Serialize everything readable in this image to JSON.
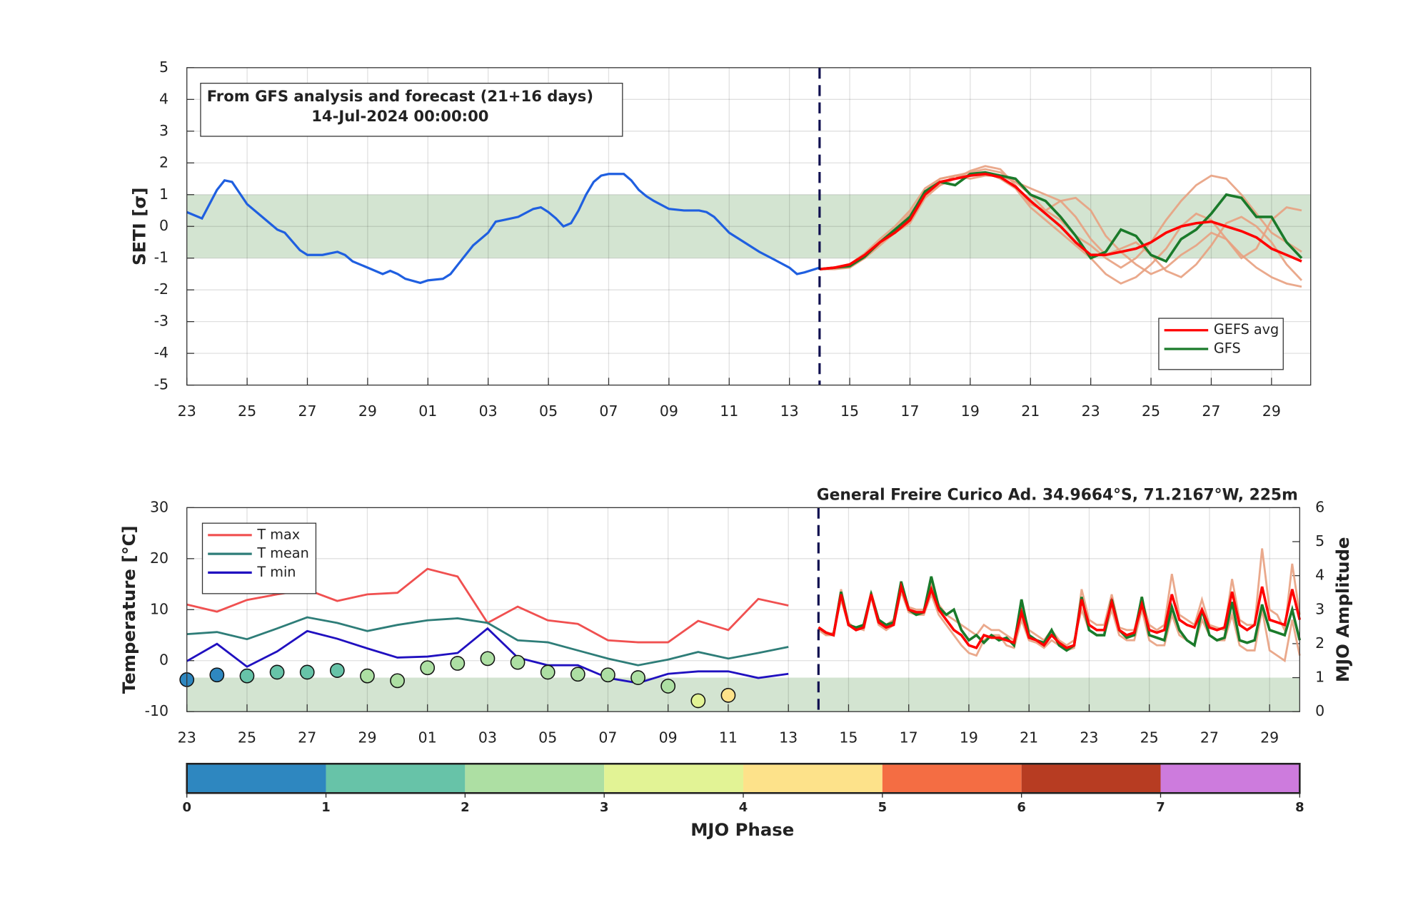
{
  "chart_data": [
    {
      "type": "line",
      "ylabel": "SETI [σ]",
      "annotation": [
        "From GFS analysis and forecast (21+16 days)",
        "14-Jul-2024 00:00:00"
      ],
      "xlim": [
        0,
        37.3
      ],
      "ylim": [
        -5,
        5
      ],
      "xticks": [
        {
          "value": 0,
          "label": "23"
        },
        {
          "value": 2,
          "label": "25"
        },
        {
          "value": 4,
          "label": "27"
        },
        {
          "value": 6,
          "label": "29"
        },
        {
          "value": 8,
          "label": "01"
        },
        {
          "value": 10,
          "label": "03"
        },
        {
          "value": 12,
          "label": "05"
        },
        {
          "value": 14,
          "label": "07"
        },
        {
          "value": 16,
          "label": "09"
        },
        {
          "value": 18,
          "label": "11"
        },
        {
          "value": 20,
          "label": "13"
        },
        {
          "value": 22,
          "label": "15"
        },
        {
          "value": 24,
          "label": "17"
        },
        {
          "value": 26,
          "label": "19"
        },
        {
          "value": 28,
          "label": "21"
        },
        {
          "value": 30,
          "label": "23"
        },
        {
          "value": 32,
          "label": "25"
        },
        {
          "value": 34,
          "label": "27"
        },
        {
          "value": 36,
          "label": "29"
        }
      ],
      "yticks": [
        -5,
        -4,
        -3,
        -2,
        -1,
        0,
        1,
        2,
        3,
        4,
        5
      ],
      "grid": true,
      "band": {
        "range": [
          -1,
          1
        ],
        "color": "#d3e4d1"
      },
      "vline": 21,
      "legend": "lower right",
      "observed": {
        "color": "#1f5fe0",
        "x": [
          0,
          0.5,
          1,
          1.25,
          1.5,
          2,
          2.5,
          3,
          3.25,
          3.75,
          4,
          4.5,
          5,
          5.25,
          5.5,
          6,
          6.5,
          6.75,
          7,
          7.25,
          7.75,
          8,
          8.5,
          8.75,
          9,
          9.5,
          10,
          10.25,
          10.5,
          11,
          11.5,
          11.75,
          12,
          12.25,
          12.5,
          12.75,
          13,
          13.25,
          13.5,
          13.75,
          14,
          14.25,
          14.5,
          14.75,
          15,
          15.25,
          15.5,
          16,
          16.5,
          17,
          17.25,
          17.5,
          18,
          18.5,
          19,
          19.5,
          20,
          20.25,
          20.5,
          21
        ],
        "values": [
          0.45,
          0.25,
          1.15,
          1.45,
          1.4,
          0.7,
          0.3,
          -0.1,
          -0.2,
          -0.75,
          -0.9,
          -0.9,
          -0.8,
          -0.9,
          -1.1,
          -1.3,
          -1.5,
          -1.4,
          -1.5,
          -1.65,
          -1.78,
          -1.7,
          -1.65,
          -1.5,
          -1.2,
          -0.6,
          -0.2,
          0.15,
          0.2,
          0.3,
          0.55,
          0.6,
          0.45,
          0.25,
          0.0,
          0.1,
          0.5,
          1.0,
          1.4,
          1.6,
          1.65,
          1.65,
          1.65,
          1.45,
          1.15,
          0.95,
          0.8,
          0.55,
          0.5,
          0.5,
          0.45,
          0.3,
          -0.2,
          -0.5,
          -0.8,
          -1.05,
          -1.3,
          -1.5,
          -1.45,
          -1.3
        ]
      },
      "forecast": {
        "x": [
          21,
          21.5,
          22,
          22.5,
          23,
          23.5,
          24,
          24.5,
          25,
          25.5,
          26,
          26.5,
          27,
          27.5,
          28,
          28.5,
          29,
          29.5,
          30,
          30.5,
          31,
          31.5,
          32,
          32.5,
          33,
          33.5,
          34,
          34.5,
          35,
          35.5,
          36,
          36.5,
          37
        ],
        "member_color": "#e8a080",
        "members": [
          [
            -1.35,
            -1.3,
            -1.2,
            -0.85,
            -0.4,
            0,
            0.5,
            1.2,
            1.5,
            1.6,
            1.7,
            1.8,
            1.7,
            1.4,
            1.0,
            0.5,
            0.2,
            -0.3,
            -0.6,
            -1.0,
            -1.3,
            -1.0,
            -0.5,
            0.2,
            0.8,
            1.3,
            1.6,
            1.5,
            1.0,
            0.4,
            -0.2,
            -0.5,
            -0.8
          ],
          [
            -1.35,
            -1.3,
            -1.25,
            -1.0,
            -0.6,
            -0.2,
            0.1,
            0.9,
            1.3,
            1.5,
            1.75,
            1.9,
            1.8,
            1.3,
            0.7,
            0.5,
            0.8,
            0.9,
            0.5,
            -0.3,
            -0.8,
            -1.2,
            -1.5,
            -1.3,
            -0.9,
            -0.6,
            -0.2,
            -0.4,
            -0.9,
            -1.3,
            -1.6,
            -1.8,
            -1.9
          ],
          [
            -1.35,
            -1.35,
            -1.3,
            -1.0,
            -0.5,
            -0.1,
            0.4,
            1.0,
            1.3,
            1.6,
            1.6,
            1.7,
            1.5,
            1.2,
            0.6,
            0.2,
            -0.2,
            -0.6,
            -1.0,
            -1.5,
            -1.8,
            -1.6,
            -1.2,
            -0.7,
            0,
            0.4,
            0.2,
            -0.4,
            -1.0,
            -0.7,
            0.2,
            0.6,
            0.5
          ],
          [
            -1.35,
            -1.3,
            -1.3,
            -0.95,
            -0.55,
            -0.2,
            0.2,
            1.1,
            1.5,
            1.6,
            1.5,
            1.6,
            1.6,
            1.4,
            1.2,
            1.0,
            0.8,
            0.3,
            -0.4,
            -0.9,
            -0.7,
            -0.5,
            -0.9,
            -1.4,
            -1.6,
            -1.2,
            -0.6,
            0.1,
            0.3,
            0.0,
            -0.5,
            -1.2,
            -1.7
          ]
        ],
        "series": [
          {
            "name": "GEFS avg",
            "color": "#ff0000",
            "values": [
              -1.35,
              -1.3,
              -1.2,
              -0.9,
              -0.5,
              -0.2,
              0.2,
              1.0,
              1.4,
              1.5,
              1.6,
              1.65,
              1.55,
              1.25,
              0.8,
              0.4,
              0.0,
              -0.5,
              -0.9,
              -0.9,
              -0.8,
              -0.7,
              -0.5,
              -0.2,
              0.0,
              0.1,
              0.15,
              0,
              -0.15,
              -0.35,
              -0.7,
              -0.9,
              -1.1
            ]
          },
          {
            "name": "GFS",
            "color": "#1a7a2a",
            "values": [
              -1.35,
              -1.3,
              -1.25,
              -0.95,
              -0.5,
              -0.1,
              0.3,
              1.1,
              1.4,
              1.3,
              1.65,
              1.7,
              1.6,
              1.5,
              1.0,
              0.8,
              0.3,
              -0.3,
              -1.0,
              -0.8,
              -0.1,
              -0.3,
              -0.9,
              -1.1,
              -0.4,
              -0.1,
              0.4,
              1.0,
              0.9,
              0.3,
              0.3,
              -0.5,
              -1.0
            ]
          }
        ]
      }
    },
    {
      "type": "line",
      "title": "General Freire Curico Ad. 34.9664°S, 71.2167°W, 225m",
      "ylabel": "Temperature [°C]",
      "y2label": "MJO Amplitude",
      "xlim": [
        0,
        37
      ],
      "ylim": [
        -10,
        30
      ],
      "y2lim": [
        0,
        6
      ],
      "xticks": [
        {
          "value": 0,
          "label": "23"
        },
        {
          "value": 2,
          "label": "25"
        },
        {
          "value": 4,
          "label": "27"
        },
        {
          "value": 6,
          "label": "29"
        },
        {
          "value": 8,
          "label": "01"
        },
        {
          "value": 10,
          "label": "03"
        },
        {
          "value": 12,
          "label": "05"
        },
        {
          "value": 14,
          "label": "07"
        },
        {
          "value": 16,
          "label": "09"
        },
        {
          "value": 18,
          "label": "11"
        },
        {
          "value": 20,
          "label": "13"
        },
        {
          "value": 22,
          "label": "15"
        },
        {
          "value": 24,
          "label": "17"
        },
        {
          "value": 26,
          "label": "19"
        },
        {
          "value": 28,
          "label": "21"
        },
        {
          "value": 30,
          "label": "23"
        },
        {
          "value": 32,
          "label": "25"
        },
        {
          "value": 34,
          "label": "27"
        },
        {
          "value": 36,
          "label": "29"
        }
      ],
      "yticks": [
        -10,
        0,
        10,
        20,
        30
      ],
      "y2ticks": [
        0,
        1,
        2,
        3,
        4,
        5,
        6
      ],
      "grid": true,
      "band": {
        "range": [
          0,
          1
        ],
        "axis": "y2",
        "color": "#d3e4d1"
      },
      "vline": 21,
      "legend": "upper left",
      "observed": {
        "x": [
          0,
          1,
          2,
          3,
          4,
          5,
          6,
          7,
          8,
          9,
          10,
          11,
          12,
          13,
          14,
          15,
          16,
          17,
          18,
          19,
          20
        ],
        "series": [
          {
            "name": "T max",
            "color": "#f05050",
            "values": [
              11.0,
              9.6,
              11.9,
              13.0,
              13.9,
              11.7,
              13.0,
              13.3,
              18.0,
              16.5,
              7.4,
              10.6,
              7.9,
              7.2,
              4.0,
              3.6,
              3.6,
              7.8,
              6.0,
              12.1,
              10.8
            ]
          },
          {
            "name": "T mean",
            "color": "#2e7d78",
            "values": [
              5.2,
              5.6,
              4.2,
              6.3,
              8.5,
              7.4,
              5.8,
              7.0,
              7.9,
              8.3,
              7.4,
              4.0,
              3.6,
              2.0,
              0.4,
              -0.9,
              0.2,
              1.7,
              0.4,
              1.5,
              2.7
            ]
          },
          {
            "name": "T min",
            "color": "#2010c0",
            "values": [
              -0.1,
              3.3,
              -1.2,
              1.8,
              5.8,
              4.3,
              2.4,
              0.6,
              0.8,
              1.5,
              6.3,
              0.6,
              -0.9,
              -0.9,
              -3.4,
              -4.4,
              -2.6,
              -2.1,
              -2.1,
              -3.4,
              -2.6
            ]
          }
        ]
      },
      "forecast": {
        "x": [
          21,
          21.25,
          21.5,
          21.75,
          22,
          22.25,
          22.5,
          22.75,
          23,
          23.25,
          23.5,
          23.75,
          24,
          24.25,
          24.5,
          24.75,
          25,
          25.25,
          25.5,
          25.75,
          26,
          26.25,
          26.5,
          26.75,
          27,
          27.25,
          27.5,
          27.75,
          28,
          28.25,
          28.5,
          28.75,
          29,
          29.25,
          29.5,
          29.75,
          30,
          30.25,
          30.5,
          30.75,
          31,
          31.25,
          31.5,
          31.75,
          32,
          32.25,
          32.5,
          32.75,
          33,
          33.25,
          33.5,
          33.75,
          34,
          34.25,
          34.5,
          34.75,
          35,
          35.25,
          35.5,
          35.75,
          36,
          36.25,
          36.5,
          36.75,
          37
        ],
        "member_color": "#e8a080",
        "members": [
          [
            6.5,
            5,
            5.5,
            12,
            7,
            6.5,
            6,
            12.5,
            7,
            6,
            7,
            13.5,
            9.5,
            9,
            9,
            13,
            9,
            7,
            5,
            3,
            1.5,
            1,
            4,
            5,
            5,
            3,
            2.5,
            8,
            4,
            3.5,
            2.5,
            4,
            3,
            2,
            2.5,
            14,
            8,
            7,
            7,
            13,
            6.5,
            6,
            6,
            12,
            7,
            6,
            7,
            17,
            9,
            8,
            7,
            12,
            7,
            6.5,
            6,
            16,
            8,
            7,
            7,
            22,
            10,
            9,
            6,
            19,
            9
          ],
          [
            6,
            5,
            5,
            14,
            7.5,
            6,
            7,
            13.5,
            8,
            7,
            8,
            15,
            10.5,
            10,
            10,
            15,
            11,
            9,
            8,
            7,
            6,
            5,
            7,
            6,
            6,
            5,
            4,
            11,
            6,
            5,
            4,
            6,
            4,
            3,
            4,
            10,
            6,
            5,
            5,
            10,
            5,
            4,
            4,
            10,
            4,
            3,
            3,
            9,
            5,
            4,
            3,
            8,
            5,
            4,
            4,
            9,
            3,
            2,
            2,
            10,
            2,
            1,
            0,
            8,
            1
          ]
        ],
        "series": [
          {
            "name": "GEFS avg",
            "color": "#ff0000",
            "values": [
              6.5,
              5.5,
              5,
              13,
              7,
              6,
              6.5,
              13,
              7.5,
              6.5,
              7,
              14.5,
              10,
              9.5,
              9.5,
              14,
              10,
              8,
              6,
              5,
              3,
              2.5,
              5,
              4.5,
              4.5,
              4,
              3.5,
              9.5,
              4.5,
              4,
              3,
              5,
              3.5,
              2.5,
              3,
              12,
              7,
              6,
              6,
              11.5,
              6,
              5,
              5.5,
              11,
              6,
              5.5,
              6,
              13,
              8,
              7,
              6.5,
              10,
              6.5,
              6,
              6.5,
              13.5,
              7,
              6,
              7,
              14.5,
              8,
              7.5,
              7,
              14,
              8
            ]
          },
          {
            "name": "GFS",
            "color": "#1a7a2a",
            "values": [
              6.5,
              5.5,
              5,
              13.5,
              7,
              6.5,
              7,
              13,
              8,
              7,
              7.5,
              15.5,
              10,
              9,
              9.5,
              16.5,
              10.5,
              9,
              10,
              6,
              4,
              5,
              3.5,
              5,
              4,
              4.5,
              3,
              12,
              5,
              4,
              3.5,
              6,
              3,
              2,
              3,
              12.5,
              6,
              5,
              5,
              12,
              6,
              4.5,
              5,
              12.5,
              5,
              4.5,
              4,
              10.5,
              6,
              4,
              3,
              10,
              5,
              4,
              4.5,
              11.5,
              4,
              3.5,
              4,
              11,
              6,
              5.5,
              5,
              10,
              4
            ]
          }
        ]
      },
      "mjo": {
        "axis": "y2",
        "x": [
          0,
          1,
          2,
          3,
          4,
          5,
          6,
          7,
          8,
          9,
          10,
          11,
          12,
          13,
          14,
          15,
          16,
          17,
          18
        ],
        "amplitude": [
          0.94,
          1.08,
          1.05,
          1.16,
          1.16,
          1.21,
          1.05,
          0.91,
          1.29,
          1.42,
          1.56,
          1.45,
          1.16,
          1.1,
          1.08,
          1.0,
          0.75,
          0.32,
          0.48
        ],
        "phase": [
          0.5,
          0.5,
          1.5,
          1.5,
          1.5,
          1.5,
          2.5,
          2.5,
          2.5,
          2.5,
          2.5,
          2.5,
          2.5,
          2.5,
          2.5,
          2.5,
          2.5,
          3.5,
          4.5
        ]
      }
    },
    {
      "type": "colorbar",
      "xlabel": "MJO Phase",
      "xlim": [
        0,
        8
      ],
      "bins": [
        0,
        1,
        2,
        3,
        4,
        5,
        6,
        7,
        8
      ],
      "colors": [
        "#2e87c0",
        "#67c3a8",
        "#addfa3",
        "#e2f395",
        "#fde28a",
        "#f46d43",
        "#b73c22",
        "#cd7bdd"
      ],
      "xticks": [
        0,
        1,
        2,
        3,
        4,
        5,
        6,
        7,
        8
      ]
    }
  ]
}
